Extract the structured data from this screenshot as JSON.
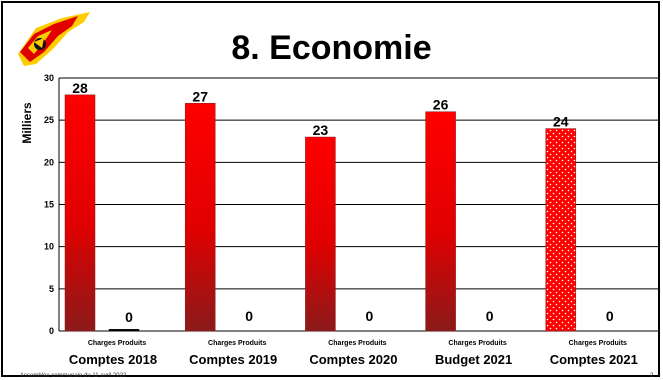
{
  "slide": {
    "title": "8. Economie",
    "footer": "Assemblée communale du 11 avril 2022",
    "page_number": "2"
  },
  "chart_data": {
    "type": "bar",
    "ylabel": "Milliers",
    "ylim": [
      0,
      30
    ],
    "yticks": [
      0,
      5,
      10,
      15,
      20,
      25,
      30
    ],
    "grid": true,
    "groups": [
      {
        "label": "Comptes 2018",
        "bars": [
          {
            "name": "Charges",
            "value": 28,
            "label": "28"
          },
          {
            "name": "Produits",
            "value": 0.2,
            "label": "0"
          }
        ]
      },
      {
        "label": "Comptes 2019",
        "bars": [
          {
            "name": "Charges",
            "value": 27,
            "label": "27"
          },
          {
            "name": "Produits",
            "value": 0,
            "label": "0"
          }
        ]
      },
      {
        "label": "Comptes 2020",
        "bars": [
          {
            "name": "Charges",
            "value": 23,
            "label": "23"
          },
          {
            "name": "Produits",
            "value": 0,
            "label": "0"
          }
        ]
      },
      {
        "label": "Budget 2021",
        "bars": [
          {
            "name": "Charges",
            "value": 26,
            "label": "26"
          },
          {
            "name": "Produits",
            "value": 0,
            "label": "0"
          }
        ]
      },
      {
        "label": "Comptes 2021",
        "bars": [
          {
            "name": "Charges",
            "value": 24,
            "label": "24",
            "pattern": "dotted"
          },
          {
            "name": "Produits",
            "value": 0,
            "label": "0"
          }
        ]
      }
    ],
    "sublabels": [
      "Charges",
      "Produits"
    ],
    "colors": {
      "bar_top": "#ff0000",
      "bar_bottom": "#8b1a1a",
      "grid": "#000000"
    }
  }
}
